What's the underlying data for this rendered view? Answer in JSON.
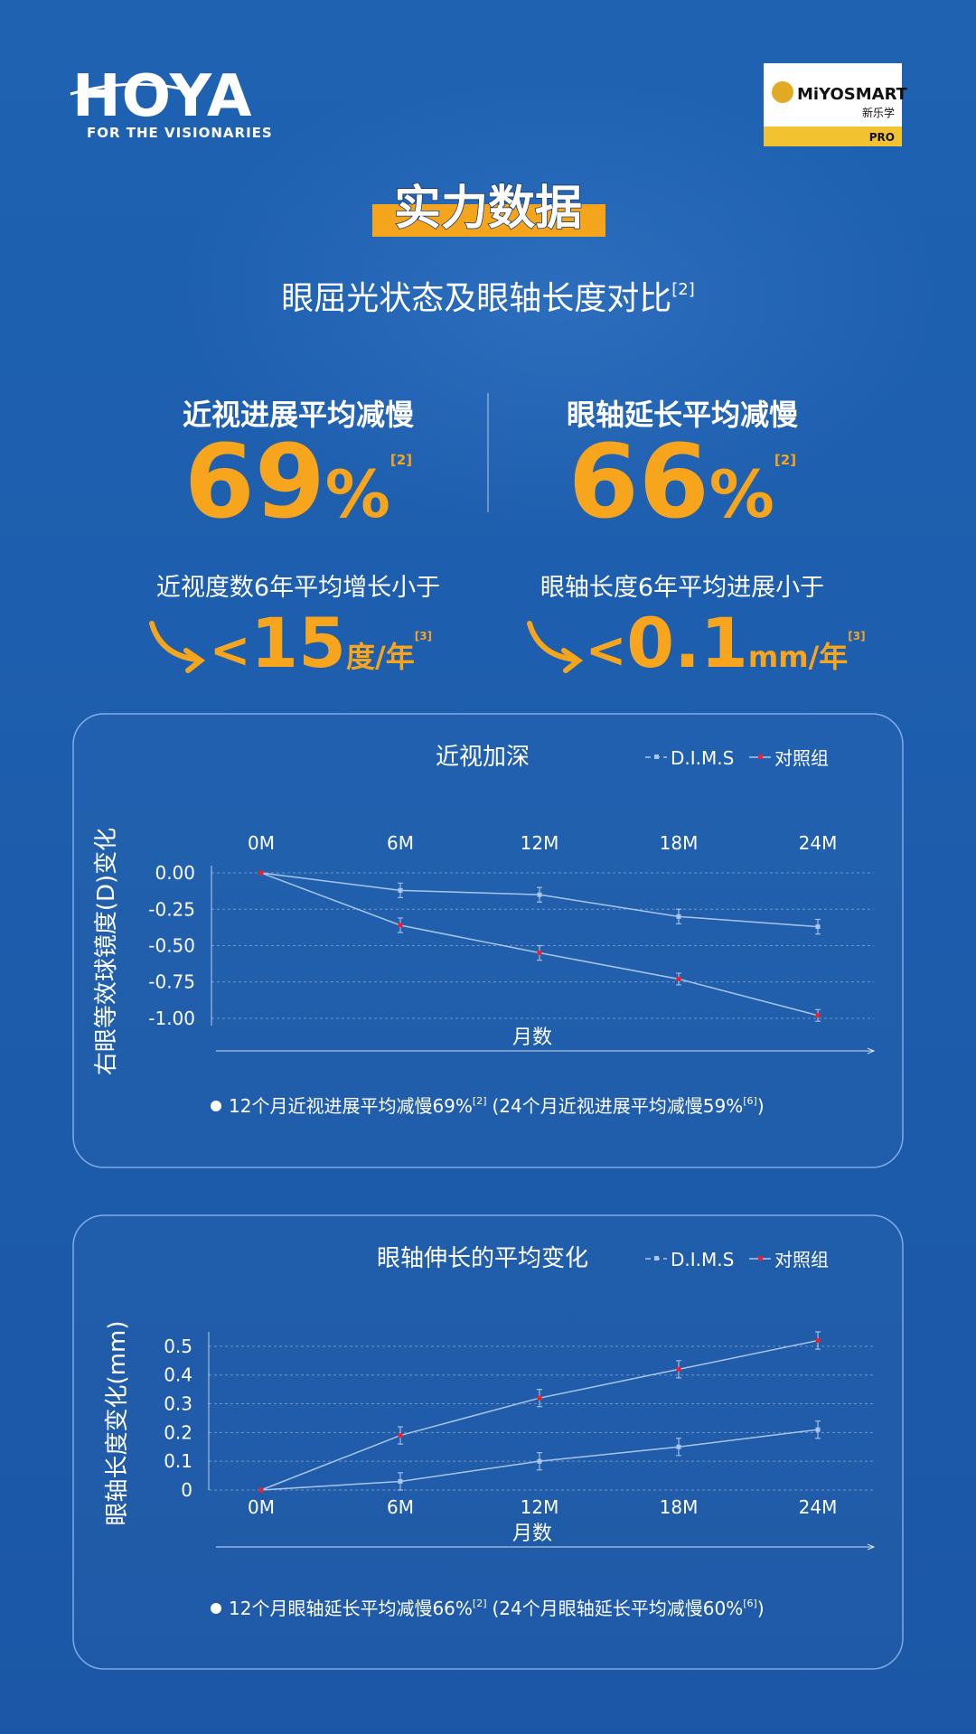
{
  "header": {
    "brand": "HOYA",
    "tagline": "FOR THE VISIONARIES",
    "badge": {
      "name": "MiYOSMART",
      "sub": "新乐学",
      "tier": "PRO"
    }
  },
  "title": "实力数据",
  "subtitle": {
    "text": "眼屈光状态及眼轴长度对比",
    "ref": "[2]"
  },
  "stats": [
    {
      "label": "近视进展平均减慢",
      "value": 69,
      "unit": "%",
      "ref": "[2]",
      "note": "近视度数6年平均增长小于",
      "limit": {
        "sign": "<",
        "value": 15,
        "unit": "度/年",
        "ref": "[3]"
      }
    },
    {
      "label": "眼轴延长平均减慢",
      "value": 66,
      "unit": "%",
      "ref": "[2]",
      "note": "眼轴长度6年平均进展小于",
      "limit": {
        "sign": "<",
        "value": 0.1,
        "unit": "mm/年",
        "ref": "[3]"
      }
    }
  ],
  "chart_data": [
    {
      "type": "line",
      "title": "近视加深",
      "x_label_position": "top",
      "xlabel": "月数",
      "ylabel": "右眼等效球镜度(D)变化",
      "categories": [
        "0M",
        "6M",
        "12M",
        "18M",
        "24M"
      ],
      "line_color": "#a9c6ee",
      "grid": true,
      "ylim": [
        -1.05,
        0.05
      ],
      "yticks": [
        {
          "value": 0,
          "label": "0.00"
        },
        {
          "value": -0.25,
          "label": "-0.25"
        },
        {
          "value": -0.5,
          "label": "-0.50"
        },
        {
          "value": -0.75,
          "label": "-0.75"
        },
        {
          "value": -1,
          "label": "-1.00"
        }
      ],
      "series": [
        {
          "name": "D.I.M.S",
          "color": "#a9c6ee",
          "values": [
            0,
            -0.12,
            -0.15,
            -0.3,
            -0.37
          ],
          "errors": [
            null,
            0.05,
            0.05,
            0.05,
            0.05
          ]
        },
        {
          "name": "对照组",
          "color": "#e8202f",
          "values": [
            0,
            -0.36,
            -0.55,
            -0.73,
            -0.98
          ],
          "errors": [
            null,
            0.05,
            0.05,
            0.04,
            0.04
          ]
        }
      ],
      "footnote": [
        "12个月近视进展平均减慢69%",
        "[2]",
        "(24个月近视进展平均减慢59%",
        "[6]",
        ")"
      ]
    },
    {
      "type": "line",
      "title": "眼轴伸长的平均变化",
      "x_label_position": "bottom",
      "xlabel": "月数",
      "ylabel": "眼轴长度变化(mm)",
      "categories": [
        "0M",
        "6M",
        "12M",
        "18M",
        "24M"
      ],
      "line_color": "#a9c6ee",
      "grid": true,
      "ylim": [
        0,
        0.55
      ],
      "yticks": [
        0.5,
        0.4,
        0.3,
        0.2,
        0.1,
        0
      ],
      "series": [
        {
          "name": "D.I.M.S",
          "color": "#a9c6ee",
          "values": [
            0,
            0.03,
            0.1,
            0.15,
            0.21
          ],
          "errors": [
            null,
            0.03,
            0.03,
            0.03,
            0.03
          ]
        },
        {
          "name": "对照组",
          "color": "#e8202f",
          "values": [
            0,
            0.19,
            0.32,
            0.42,
            0.52
          ],
          "errors": [
            null,
            0.03,
            0.03,
            0.03,
            0.03
          ]
        }
      ],
      "footnote": [
        "12个月眼轴延长平均减慢66%",
        "[2]",
        "(24个月眼轴延长平均减慢60%",
        "[6]",
        ")"
      ]
    }
  ]
}
